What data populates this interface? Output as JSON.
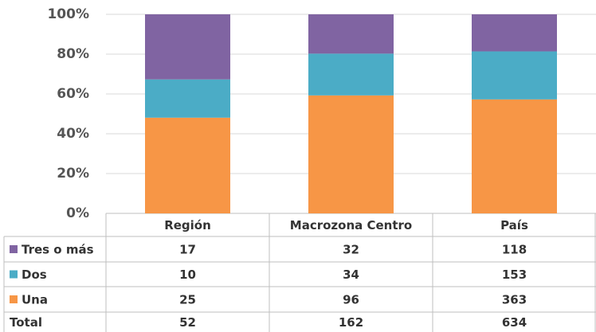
{
  "chart_data": {
    "type": "stacked-percent-bar",
    "categories": [
      "Región",
      "Macrozona Centro",
      "País"
    ],
    "series": [
      {
        "name": "Tres o más",
        "color": "#8064a2",
        "values": [
          17,
          32,
          118
        ]
      },
      {
        "name": "Dos",
        "color": "#4bacc6",
        "values": [
          10,
          34,
          153
        ]
      },
      {
        "name": "Una",
        "color": "#f79646",
        "values": [
          25,
          96,
          363
        ]
      }
    ],
    "total_label": "Total",
    "totals": [
      52,
      162,
      634
    ],
    "ylim": [
      0,
      100
    ],
    "yticks": [
      {
        "value": 0,
        "label": "0%"
      },
      {
        "value": 20,
        "label": "20%"
      },
      {
        "value": 40,
        "label": "40%"
      },
      {
        "value": 60,
        "label": "60%"
      },
      {
        "value": 80,
        "label": "80%"
      },
      {
        "value": 100,
        "label": "100%"
      }
    ],
    "grid": true
  }
}
